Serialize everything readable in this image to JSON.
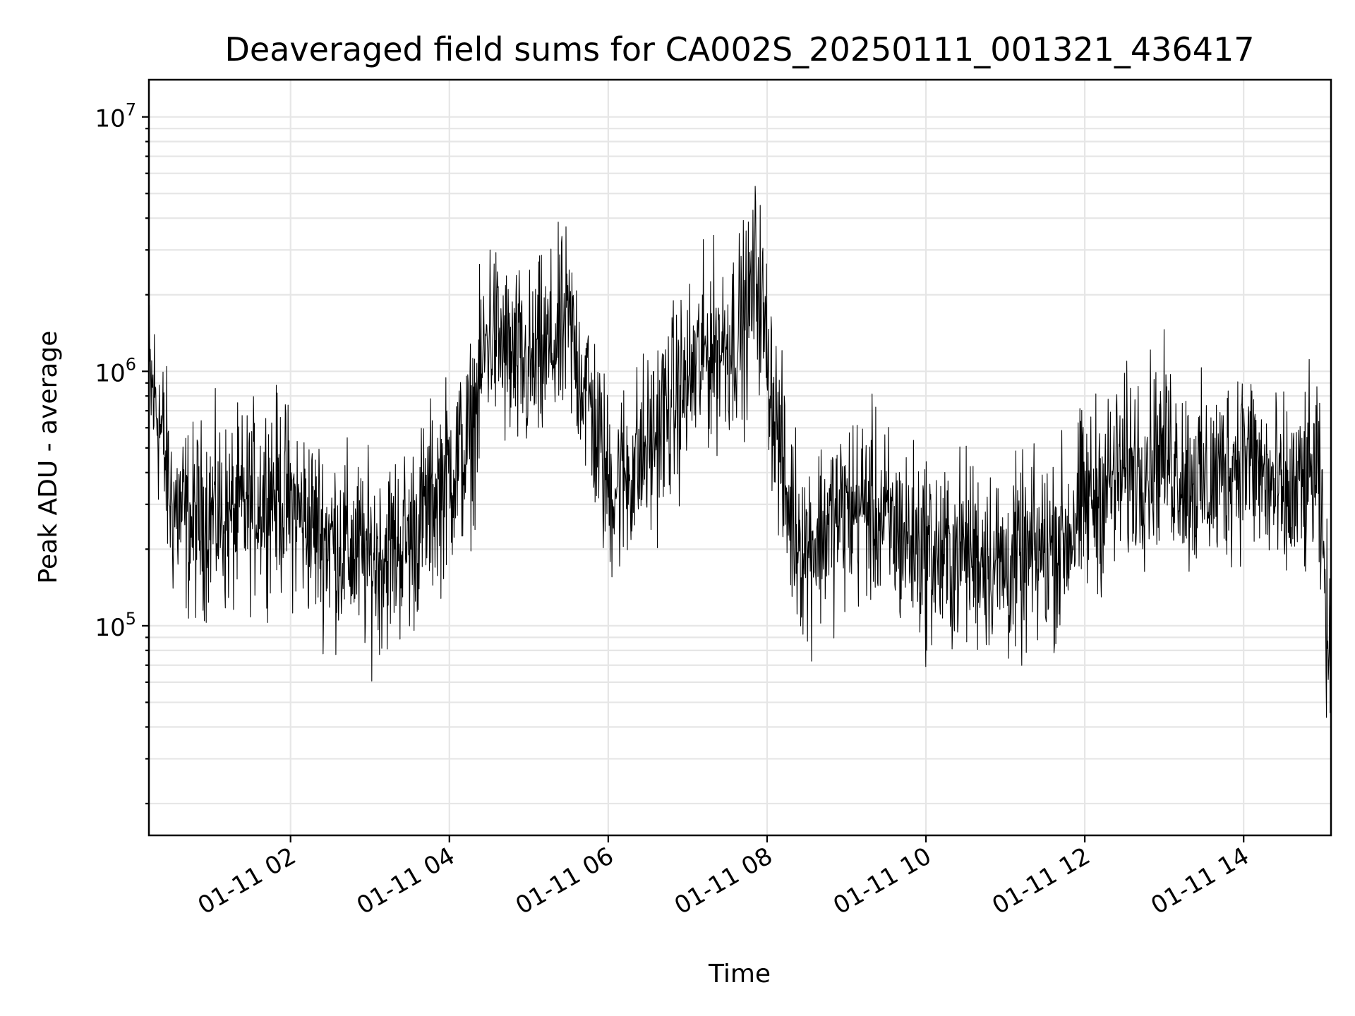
{
  "chart_data": {
    "type": "line",
    "title": "Deaveraged field sums for CA002S_20250111_001321_436417",
    "xlabel": "Time",
    "ylabel": "Peak ADU - average",
    "yscale": "log",
    "xlim": [
      "2025-01-11T00:13:00",
      "2025-01-11T15:06:00"
    ],
    "ylim": [
      15000,
      14000000
    ],
    "grid": true,
    "series_color": "#000000",
    "x_ticks": [
      {
        "value": "2025-01-11T02:00:00",
        "label": "01-11 02"
      },
      {
        "value": "2025-01-11T04:00:00",
        "label": "01-11 04"
      },
      {
        "value": "2025-01-11T06:00:00",
        "label": "01-11 06"
      },
      {
        "value": "2025-01-11T08:00:00",
        "label": "01-11 08"
      },
      {
        "value": "2025-01-11T10:00:00",
        "label": "01-11 10"
      },
      {
        "value": "2025-01-11T12:00:00",
        "label": "01-11 12"
      },
      {
        "value": "2025-01-11T14:00:00",
        "label": "01-11 14"
      }
    ],
    "y_ticks": [
      {
        "value": 100000,
        "base": "10",
        "exp": "5"
      },
      {
        "value": 1000000,
        "base": "10",
        "exp": "6"
      },
      {
        "value": 10000000,
        "base": "10",
        "exp": "7"
      }
    ],
    "series": [
      {
        "x": [
          "2025-01-11T00:13:00",
          "2025-01-11T00:20:00",
          "2025-01-11T00:30:00",
          "2025-01-11T00:45:00",
          "2025-01-11T01:00:00",
          "2025-01-11T01:15:00",
          "2025-01-11T01:30:00",
          "2025-01-11T01:45:00",
          "2025-01-11T02:00:00",
          "2025-01-11T02:15:00",
          "2025-01-11T02:30:00",
          "2025-01-11T02:45:00",
          "2025-01-11T03:00:00",
          "2025-01-11T03:15:00",
          "2025-01-11T03:30:00",
          "2025-01-11T03:45:00",
          "2025-01-11T04:00:00",
          "2025-01-11T04:15:00",
          "2025-01-11T04:30:00",
          "2025-01-11T04:45:00",
          "2025-01-11T05:00:00",
          "2025-01-11T05:15:00",
          "2025-01-11T05:30:00",
          "2025-01-11T05:45:00",
          "2025-01-11T06:00:00",
          "2025-01-11T06:15:00",
          "2025-01-11T06:30:00",
          "2025-01-11T06:45:00",
          "2025-01-11T07:00:00",
          "2025-01-11T07:15:00",
          "2025-01-11T07:30:00",
          "2025-01-11T07:45:00",
          "2025-01-11T07:52:00",
          "2025-01-11T08:00:00",
          "2025-01-11T08:15:00",
          "2025-01-11T08:30:00",
          "2025-01-11T08:45:00",
          "2025-01-11T09:00:00",
          "2025-01-11T09:15:00",
          "2025-01-11T09:30:00",
          "2025-01-11T09:45:00",
          "2025-01-11T10:00:00",
          "2025-01-11T10:15:00",
          "2025-01-11T10:30:00",
          "2025-01-11T10:45:00",
          "2025-01-11T11:00:00",
          "2025-01-11T11:15:00",
          "2025-01-11T11:30:00",
          "2025-01-11T11:45:00",
          "2025-01-11T12:00:00",
          "2025-01-11T12:15:00",
          "2025-01-11T12:30:00",
          "2025-01-11T12:45:00",
          "2025-01-11T13:00:00",
          "2025-01-11T13:15:00",
          "2025-01-11T13:30:00",
          "2025-01-11T13:45:00",
          "2025-01-11T14:00:00",
          "2025-01-11T14:15:00",
          "2025-01-11T14:30:00",
          "2025-01-11T14:45:00",
          "2025-01-11T14:55:00",
          "2025-01-11T15:00:00",
          "2025-01-11T15:06:00"
        ],
        "y": [
          900000,
          700000,
          300000,
          250000,
          280000,
          260000,
          300000,
          350000,
          300000,
          250000,
          220000,
          200000,
          180000,
          200000,
          220000,
          300000,
          400000,
          500000,
          1500000,
          1100000,
          1000000,
          1200000,
          1500000,
          800000,
          350000,
          400000,
          500000,
          700000,
          900000,
          1200000,
          1300000,
          1600000,
          2500000,
          1200000,
          300000,
          200000,
          250000,
          280000,
          300000,
          250000,
          220000,
          200000,
          180000,
          200000,
          190000,
          170000,
          180000,
          200000,
          220000,
          300000,
          350000,
          400000,
          450000,
          500000,
          400000,
          350000,
          400000,
          500000,
          380000,
          300000,
          350000,
          400000,
          200000,
          50000
        ]
      }
    ]
  }
}
